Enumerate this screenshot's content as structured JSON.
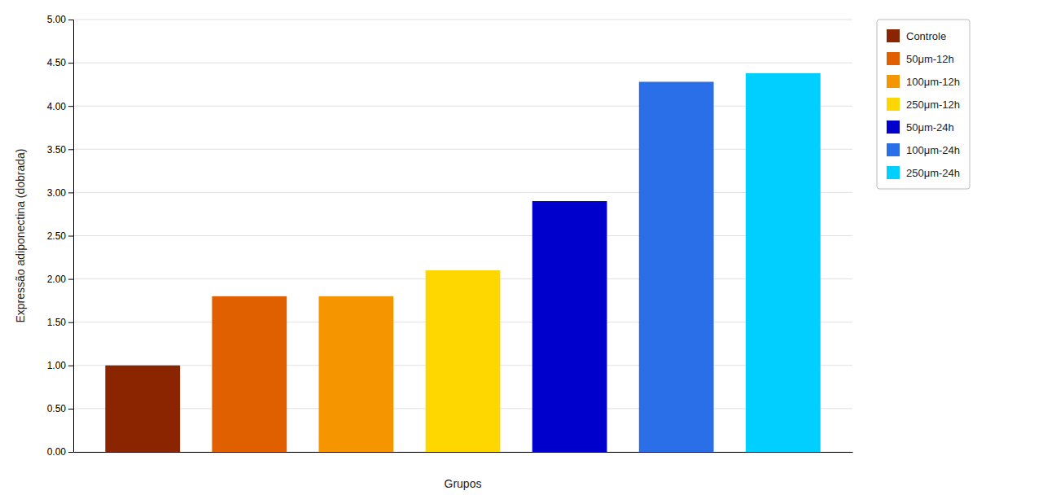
{
  "chart_data": {
    "type": "bar",
    "categories": [
      "Controle",
      "50μm-12h",
      "100μm-12h",
      "250μm-12h",
      "50μm-24h",
      "100μm-24h",
      "250μm-24h"
    ],
    "values": [
      1.0,
      1.8,
      1.8,
      2.1,
      2.9,
      4.28,
      4.38
    ],
    "colors": [
      "#8B2500",
      "#E06000",
      "#F59500",
      "#FFD700",
      "#0000CC",
      "#2B6FE8",
      "#00CFFF"
    ],
    "xlabel": "Grupos",
    "ylabel": "Expressão adiponectina (dobrada)",
    "ylim": [
      0,
      5.0
    ],
    "yticks": [
      {
        "value": 0,
        "label": "0.00"
      },
      {
        "value": 0.5,
        "label": "0.50"
      },
      {
        "value": 1.0,
        "label": "1.00"
      },
      {
        "value": 1.5,
        "label": "1.50"
      },
      {
        "value": 2.0,
        "label": "2.00"
      },
      {
        "value": 2.5,
        "label": "2.50"
      },
      {
        "value": 3.0,
        "label": "3.00"
      },
      {
        "value": 3.5,
        "label": "3.50"
      },
      {
        "value": 4.0,
        "label": "4.00"
      },
      {
        "value": 4.5,
        "label": "4.50"
      },
      {
        "value": 5.0,
        "label": "5.00"
      }
    ],
    "grid": true,
    "legend": "upper right",
    "tick_labels": "y"
  }
}
